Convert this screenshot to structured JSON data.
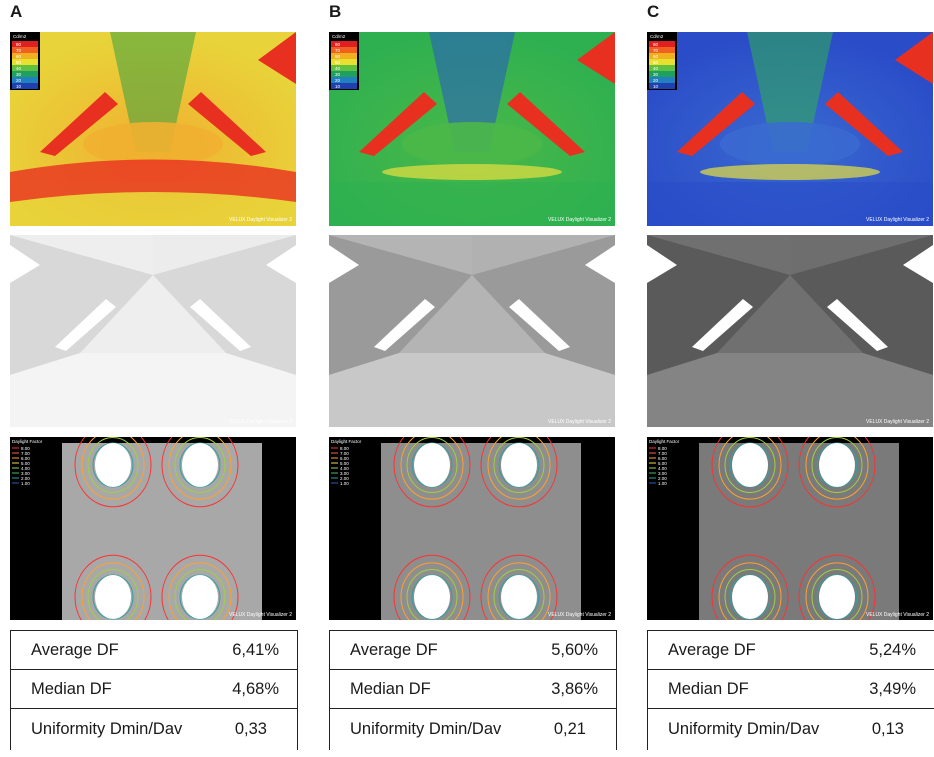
{
  "columns": [
    {
      "label": "A",
      "luminance_legend_title": "Cd/m2",
      "luminance_scale": [
        "80",
        "70",
        "60",
        "50",
        "40",
        "30",
        "20",
        "10"
      ],
      "watermark": "VELUX Daylight Visualizer 2",
      "df_legend_title": "Daylight Factor",
      "df_scale": [
        "8.00",
        "7.00",
        "6.00",
        "5.00",
        "4.00",
        "3.00",
        "2.00",
        "1.00"
      ],
      "theme": {
        "base": "#e8d43a",
        "mid": "#f0b030",
        "hot": "#e83020",
        "cool": "#3aa040",
        "render_bg": "#d8d8d8",
        "render_wall": "#eeeeee",
        "render_floor": "#f4f4f4",
        "df_floor": "#a8a8a8"
      },
      "stats": [
        {
          "label": "Average DF",
          "value": "6,41%"
        },
        {
          "label": "Median DF",
          "value": "4,68%"
        },
        {
          "label": "Uniformity Dmin/Dav",
          "value": "0,33"
        }
      ]
    },
    {
      "label": "B",
      "luminance_legend_title": "Cd/m2",
      "luminance_scale": [
        "80",
        "70",
        "60",
        "50",
        "40",
        "30",
        "20",
        "10"
      ],
      "watermark": "VELUX Daylight Visualizer 2",
      "df_legend_title": "Daylight Factor",
      "df_scale": [
        "8.00",
        "7.00",
        "6.00",
        "5.00",
        "4.00",
        "3.00",
        "2.00",
        "1.00"
      ],
      "theme": {
        "base": "#2fb050",
        "mid": "#4ab848",
        "hot": "#e83020",
        "cool": "#2858c8",
        "render_bg": "#9a9a9a",
        "render_wall": "#b4b4b4",
        "render_floor": "#c8c8c8",
        "df_floor": "#8e8e8e"
      },
      "stats": [
        {
          "label": "Average DF",
          "value": "5,60%"
        },
        {
          "label": "Median DF",
          "value": "3,86%"
        },
        {
          "label": "Uniformity Dmin/Dav",
          "value": "0,21"
        }
      ]
    },
    {
      "label": "C",
      "luminance_legend_title": "Cd/m2",
      "luminance_scale": [
        "80",
        "70",
        "60",
        "50",
        "40",
        "30",
        "20",
        "10"
      ],
      "watermark": "VELUX Daylight Visualizer 2",
      "df_legend_title": "Daylight Factor",
      "df_scale": [
        "8.00",
        "7.00",
        "6.00",
        "5.00",
        "4.00",
        "3.00",
        "2.00",
        "1.00"
      ],
      "theme": {
        "base": "#2a4cc8",
        "mid": "#3a6ad0",
        "hot": "#e83020",
        "cool": "#2fb050",
        "render_bg": "#5a5a5a",
        "render_wall": "#707070",
        "render_floor": "#848484",
        "df_floor": "#7a7a7a"
      },
      "stats": [
        {
          "label": "Average DF",
          "value": "5,24%"
        },
        {
          "label": "Median DF",
          "value": "3,49%"
        },
        {
          "label": "Uniformity Dmin/Dav",
          "value": "0,13"
        }
      ]
    }
  ]
}
